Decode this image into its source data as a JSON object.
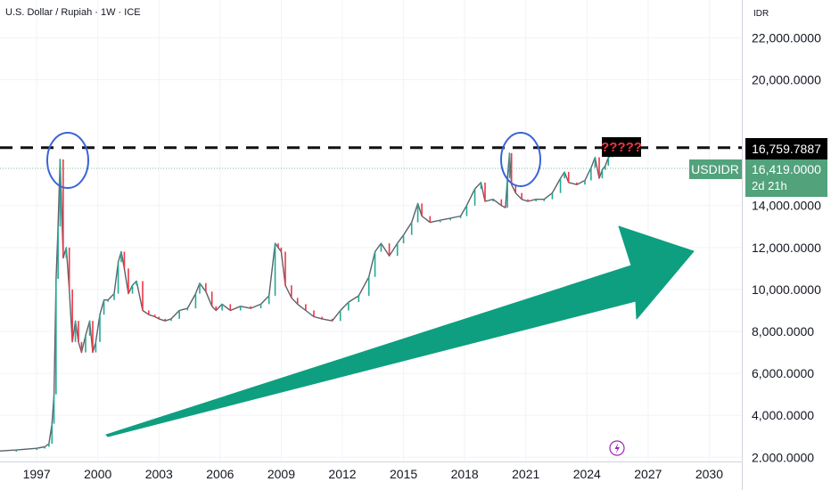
{
  "header": {
    "title": "U.S. Dollar / Rupiah · 1W · ICE",
    "currency": "IDR"
  },
  "colors": {
    "up": "#22ab94",
    "down": "#f23645",
    "line": "#5d606b",
    "arrow": "#0e9f80",
    "ellipse": "#3a64d8",
    "level_tag_bg": "#000000",
    "price_tag_bg": "#52a27c",
    "question_text": "#f23645"
  },
  "chart_data": {
    "type": "line",
    "title": "U.S. Dollar / Rupiah · 1W · ICE",
    "x_ticks": [
      "1997",
      "2000",
      "2003",
      "2006",
      "2009",
      "2012",
      "2015",
      "2018",
      "2021",
      "2024",
      "2027",
      "2030"
    ],
    "y_ticks": [
      "2,000.0000",
      "4,000.0000",
      "6,000.0000",
      "8,000.0000",
      "10,000.0000",
      "12,000.0000",
      "14,000.0000",
      "20,000.0000",
      "22,000.0000"
    ],
    "xlim": [
      1995.2,
      2031.6
    ],
    "ylim": [
      1800,
      23800
    ],
    "series": [
      {
        "x": [
          1995.2,
          1996.0,
          1997.0,
          1997.4,
          1997.6,
          1997.75,
          1997.85,
          1997.95,
          1998.05,
          1998.15,
          1998.3,
          1998.45,
          1998.6,
          1998.75,
          1998.9,
          1999.05,
          1999.2,
          1999.4,
          1999.6,
          1999.75,
          1999.9,
          2000.1,
          2000.3,
          2000.5,
          2000.8,
          2001.0,
          2001.15,
          2001.3,
          2001.5,
          2001.7,
          2001.9,
          2002.2,
          2002.5,
          2002.8,
          2003.0,
          2003.3,
          2003.6,
          2004.0,
          2004.4,
          2004.8,
          2005.0,
          2005.3,
          2005.6,
          2005.8,
          2006.1,
          2006.5,
          2007.0,
          2007.5,
          2008.0,
          2008.4,
          2008.7,
          2008.85,
          2009.0,
          2009.2,
          2009.5,
          2009.8,
          2010.2,
          2010.6,
          2011.0,
          2011.5,
          2011.9,
          2012.3,
          2012.8,
          2013.3,
          2013.6,
          2013.9,
          2014.3,
          2014.7,
          2015.0,
          2015.4,
          2015.7,
          2015.9,
          2016.3,
          2016.8,
          2017.3,
          2017.8,
          2018.1,
          2018.5,
          2018.8,
          2019.0,
          2019.4,
          2019.8,
          2020.0,
          2020.1,
          2020.2,
          2020.3,
          2020.5,
          2020.8,
          2021.1,
          2021.5,
          2021.9,
          2022.3,
          2022.7,
          2022.9,
          2023.1,
          2023.5,
          2023.9,
          2024.2,
          2024.4,
          2024.6,
          2024.75,
          2024.9,
          2025.05,
          2025.25
        ],
        "values": [
          2300,
          2350,
          2430,
          2500,
          2650,
          3600,
          5000,
          10500,
          13000,
          16200,
          11500,
          12000,
          10000,
          7500,
          8500,
          7500,
          7000,
          7800,
          8500,
          7000,
          7500,
          8800,
          9500,
          9500,
          9800,
          11300,
          11800,
          11000,
          9800,
          10200,
          10400,
          9000,
          8800,
          8700,
          8600,
          8500,
          8600,
          9000,
          9100,
          9800,
          10300,
          9900,
          9200,
          9000,
          9300,
          9000,
          9200,
          9100,
          9300,
          9700,
          12200,
          12000,
          11800,
          10200,
          9600,
          9300,
          9000,
          8700,
          8600,
          8500,
          9000,
          9400,
          9700,
          10600,
          11800,
          12200,
          11600,
          12200,
          12600,
          13200,
          14100,
          13500,
          13200,
          13300,
          13400,
          13500,
          14000,
          14800,
          15100,
          14200,
          14300,
          14000,
          13900,
          15300,
          16500,
          15000,
          14600,
          14300,
          14200,
          14300,
          14300,
          14600,
          15300,
          15600,
          15100,
          15000,
          15200,
          15800,
          16300,
          15300,
          15700,
          15900,
          16300,
          16400
        ]
      }
    ],
    "horizontal_level": 16759.7887
  },
  "annotations": {
    "question_marks": "?????",
    "level_label": "16,759.7887",
    "symbol_label": "USDIDR",
    "price_label": "16,419.0000",
    "countdown_label": "2d 21h",
    "lightning_icon": "lightning-icon"
  }
}
